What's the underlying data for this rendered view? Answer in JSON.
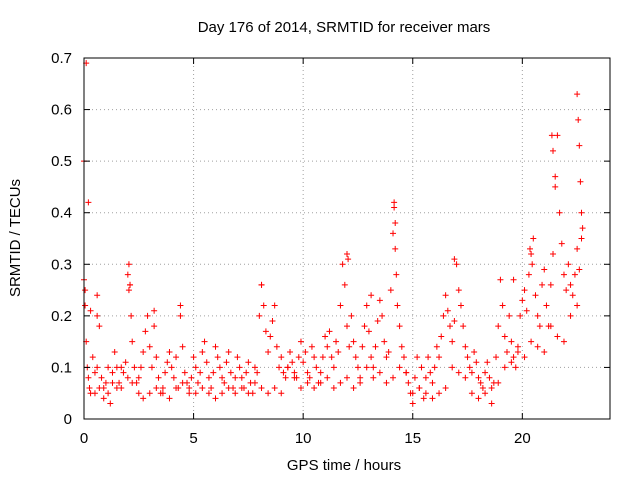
{
  "chart_data": {
    "type": "scatter",
    "title": "Day 176 of 2014, SRMTID for receiver mars",
    "xlabel": "GPS time / hours",
    "ylabel": "SRMTID / TECUs",
    "xlim": [
      0,
      24
    ],
    "ylim": [
      0,
      0.7
    ],
    "xticks": [
      0,
      5,
      10,
      15,
      20
    ],
    "xtick_labels": [
      "0",
      "5",
      "10",
      "15",
      "20"
    ],
    "yticks": [
      0,
      0.1,
      0.2,
      0.3,
      0.4,
      0.5,
      0.6,
      0.7
    ],
    "ytick_labels": [
      "0",
      "0.1",
      "0.2",
      "0.3",
      "0.4",
      "0.5",
      "0.6",
      "0.7"
    ],
    "grid": true,
    "marker": "+",
    "color": "#ff0000",
    "series": [
      {
        "name": "SRMTID",
        "x": [
          0.0,
          0.05,
          0.1,
          0.15,
          0.2,
          0.25,
          0.3,
          0.4,
          0.5,
          0.6,
          0.7,
          0.8,
          0.9,
          1.0,
          1.1,
          1.2,
          1.3,
          1.4,
          1.5,
          1.6,
          1.7,
          1.8,
          1.9,
          2.0,
          2.05,
          2.1,
          2.15,
          2.2,
          2.3,
          2.4,
          2.5,
          2.6,
          2.7,
          2.8,
          2.9,
          3.0,
          3.1,
          3.2,
          3.3,
          3.4,
          3.5,
          3.6,
          3.7,
          3.8,
          3.9,
          4.0,
          4.1,
          4.2,
          4.3,
          4.4,
          4.5,
          4.6,
          4.7,
          4.8,
          4.9,
          5.0,
          5.1,
          5.2,
          5.3,
          5.4,
          5.5,
          5.6,
          5.7,
          5.8,
          5.9,
          6.0,
          6.1,
          6.2,
          6.3,
          6.4,
          6.5,
          6.6,
          6.7,
          6.8,
          6.9,
          7.0,
          7.1,
          7.2,
          7.3,
          7.4,
          7.5,
          7.6,
          7.7,
          7.8,
          7.9,
          8.0,
          8.1,
          8.2,
          8.3,
          8.4,
          8.5,
          8.6,
          8.7,
          8.8,
          8.9,
          9.0,
          9.1,
          9.2,
          9.3,
          9.4,
          9.5,
          9.6,
          9.7,
          9.8,
          9.9,
          10.0,
          10.1,
          10.2,
          10.3,
          10.4,
          10.5,
          10.6,
          10.7,
          10.8,
          10.9,
          11.0,
          11.1,
          11.2,
          11.3,
          11.4,
          11.5,
          11.6,
          11.7,
          11.8,
          11.9,
          12.0,
          12.1,
          12.2,
          12.3,
          12.4,
          12.5,
          12.6,
          12.7,
          12.8,
          12.9,
          13.0,
          13.1,
          13.2,
          13.3,
          13.4,
          13.5,
          13.6,
          13.7,
          13.8,
          13.9,
          14.0,
          14.1,
          14.15,
          14.2,
          14.25,
          14.3,
          14.4,
          14.5,
          14.6,
          14.7,
          14.8,
          14.9,
          15.0,
          15.1,
          15.2,
          15.3,
          15.4,
          15.5,
          15.6,
          15.7,
          15.8,
          15.9,
          16.0,
          16.1,
          16.2,
          16.3,
          16.4,
          16.5,
          16.6,
          16.7,
          16.8,
          16.9,
          17.0,
          17.1,
          17.2,
          17.3,
          17.4,
          17.5,
          17.6,
          17.7,
          17.8,
          17.9,
          18.0,
          18.1,
          18.2,
          18.3,
          18.4,
          18.5,
          18.6,
          18.7,
          18.8,
          18.9,
          19.0,
          19.1,
          19.2,
          19.3,
          19.4,
          19.5,
          19.6,
          19.7,
          19.8,
          19.9,
          20.0,
          20.1,
          20.2,
          20.3,
          20.4,
          20.5,
          20.6,
          20.7,
          20.8,
          20.9,
          21.0,
          21.1,
          21.2,
          21.3,
          21.4,
          21.5,
          21.6,
          21.7,
          21.8,
          21.9,
          22.0,
          22.1,
          22.2,
          22.3,
          22.4,
          22.5,
          22.6,
          22.7,
          0.0,
          0.1,
          0.2,
          0.3,
          0.5,
          0.6,
          0.7,
          0.9,
          1.1,
          1.3,
          1.5,
          1.7,
          2.0,
          2.2,
          2.5,
          2.7,
          3.0,
          3.3,
          3.6,
          3.9,
          4.2,
          4.5,
          4.8,
          5.1,
          5.4,
          5.7,
          6.0,
          6.3,
          6.6,
          6.9,
          7.2,
          7.5,
          7.8,
          8.1,
          8.4,
          8.7,
          9.0,
          9.3,
          9.6,
          9.9,
          10.2,
          10.5,
          10.8,
          11.1,
          11.4,
          11.7,
          12.0,
          12.3,
          12.6,
          12.9,
          13.2,
          13.5,
          13.8,
          14.1,
          14.4,
          14.7,
          15.0,
          15.3,
          15.6,
          15.9,
          16.2,
          16.5,
          16.8,
          17.1,
          17.4,
          17.7,
          18.0,
          18.3,
          18.6,
          18.9,
          19.2,
          19.5,
          19.8,
          20.1,
          20.4,
          20.7,
          21.0,
          21.3,
          21.6,
          21.9,
          22.2,
          22.5,
          21.35,
          21.4,
          22.5,
          22.55,
          22.6,
          22.65,
          22.7,
          22.75,
          21.5,
          20.35,
          20.45,
          14.15,
          14.2,
          12.0,
          12.05,
          2.05,
          8.1,
          19.6,
          16.9,
          0.05,
          0.6,
          2.1,
          3.2,
          4.4,
          13.1
        ],
        "y": [
          0.27,
          0.22,
          0.15,
          0.1,
          0.08,
          0.06,
          0.05,
          0.12,
          0.09,
          0.24,
          0.18,
          0.08,
          0.06,
          0.07,
          0.05,
          0.03,
          0.09,
          0.13,
          0.1,
          0.07,
          0.06,
          0.09,
          0.11,
          0.28,
          0.3,
          0.26,
          0.2,
          0.15,
          0.1,
          0.07,
          0.08,
          0.1,
          0.13,
          0.17,
          0.2,
          0.14,
          0.1,
          0.18,
          0.12,
          0.08,
          0.05,
          0.06,
          0.09,
          0.11,
          0.13,
          0.1,
          0.08,
          0.12,
          0.06,
          0.2,
          0.14,
          0.09,
          0.07,
          0.05,
          0.08,
          0.12,
          0.1,
          0.07,
          0.09,
          0.13,
          0.15,
          0.11,
          0.08,
          0.06,
          0.09,
          0.14,
          0.12,
          0.1,
          0.08,
          0.07,
          0.11,
          0.13,
          0.09,
          0.06,
          0.08,
          0.12,
          0.1,
          0.08,
          0.06,
          0.09,
          0.11,
          0.07,
          0.05,
          0.1,
          0.09,
          0.2,
          0.26,
          0.22,
          0.17,
          0.13,
          0.16,
          0.19,
          0.22,
          0.14,
          0.1,
          0.12,
          0.09,
          0.08,
          0.1,
          0.13,
          0.11,
          0.09,
          0.08,
          0.12,
          0.15,
          0.11,
          0.13,
          0.09,
          0.08,
          0.14,
          0.12,
          0.1,
          0.07,
          0.09,
          0.12,
          0.16,
          0.14,
          0.17,
          0.12,
          0.1,
          0.15,
          0.13,
          0.22,
          0.3,
          0.26,
          0.18,
          0.14,
          0.2,
          0.15,
          0.12,
          0.1,
          0.08,
          0.14,
          0.18,
          0.22,
          0.17,
          0.12,
          0.1,
          0.14,
          0.19,
          0.23,
          0.2,
          0.15,
          0.12,
          0.13,
          0.25,
          0.36,
          0.42,
          0.33,
          0.28,
          0.22,
          0.18,
          0.14,
          0.12,
          0.09,
          0.07,
          0.05,
          0.03,
          0.08,
          0.12,
          0.06,
          0.1,
          0.04,
          0.08,
          0.12,
          0.09,
          0.07,
          0.1,
          0.14,
          0.12,
          0.16,
          0.2,
          0.24,
          0.21,
          0.18,
          0.15,
          0.19,
          0.3,
          0.25,
          0.22,
          0.18,
          0.14,
          0.12,
          0.1,
          0.09,
          0.13,
          0.11,
          0.08,
          0.07,
          0.06,
          0.09,
          0.11,
          0.08,
          0.03,
          0.07,
          0.12,
          0.18,
          0.27,
          0.22,
          0.16,
          0.13,
          0.2,
          0.15,
          0.12,
          0.1,
          0.14,
          0.2,
          0.23,
          0.25,
          0.21,
          0.28,
          0.32,
          0.35,
          0.24,
          0.2,
          0.18,
          0.26,
          0.29,
          0.22,
          0.18,
          0.26,
          0.32,
          0.45,
          0.55,
          0.4,
          0.34,
          0.28,
          0.25,
          0.3,
          0.26,
          0.24,
          0.28,
          0.33,
          0.29,
          0.35,
          0.5,
          0.69,
          0.42,
          0.21,
          0.05,
          0.1,
          0.06,
          0.04,
          0.1,
          0.07,
          0.06,
          0.1,
          0.08,
          0.07,
          0.05,
          0.04,
          0.05,
          0.06,
          0.05,
          0.04,
          0.06,
          0.07,
          0.06,
          0.05,
          0.06,
          0.05,
          0.04,
          0.05,
          0.06,
          0.05,
          0.06,
          0.05,
          0.07,
          0.06,
          0.05,
          0.06,
          0.05,
          0.1,
          0.08,
          0.06,
          0.07,
          0.06,
          0.07,
          0.08,
          0.06,
          0.07,
          0.08,
          0.06,
          0.07,
          0.1,
          0.08,
          0.09,
          0.07,
          0.08,
          0.1,
          0.09,
          0.05,
          0.06,
          0.05,
          0.04,
          0.05,
          0.06,
          0.1,
          0.09,
          0.08,
          0.05,
          0.04,
          0.05,
          0.06,
          0.07,
          0.1,
          0.11,
          0.13,
          0.12,
          0.15,
          0.14,
          0.13,
          0.18,
          0.16,
          0.15,
          0.2,
          0.22,
          0.55,
          0.52,
          0.63,
          0.58,
          0.53,
          0.46,
          0.4,
          0.37,
          0.47,
          0.33,
          0.3,
          0.41,
          0.38,
          0.32,
          0.31,
          0.25,
          0.26,
          0.27,
          0.31,
          0.25,
          0.2,
          0.26,
          0.21,
          0.22,
          0.24
        ]
      }
    ]
  }
}
